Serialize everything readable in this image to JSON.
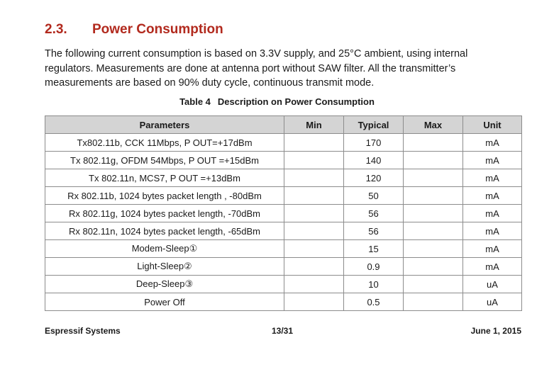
{
  "section": {
    "number": "2.3.",
    "title": "Power Consumption"
  },
  "paragraph": "The following current consumption is based on 3.3V supply, and 25°C ambient, using internal regulators. Measurements are done at antenna port without SAW filter. All the transmitter’s measurements are based on 90% duty cycle, continuous transmit mode.",
  "table": {
    "caption_number": "Table 4",
    "caption_title": "Description on Power Consumption",
    "headers": [
      "Parameters",
      "Min",
      "Typical",
      "Max",
      "Unit"
    ],
    "rows": [
      [
        "Tx802.11b, CCK 11Mbps, P OUT=+17dBm",
        "",
        "170",
        "",
        "mA"
      ],
      [
        "Tx 802.11g, OFDM 54Mbps, P OUT =+15dBm",
        "",
        "140",
        "",
        "mA"
      ],
      [
        "Tx 802.11n, MCS7, P OUT =+13dBm",
        "",
        "120",
        "",
        "mA"
      ],
      [
        "Rx 802.11b, 1024 bytes packet length , -80dBm",
        "",
        "50",
        "",
        "mA"
      ],
      [
        "Rx 802.11g, 1024 bytes packet length, -70dBm",
        "",
        "56",
        "",
        "mA"
      ],
      [
        "Rx 802.11n, 1024 bytes packet length, -65dBm",
        "",
        "56",
        "",
        "mA"
      ],
      [
        "Modem-Sleep①",
        "",
        "15",
        "",
        "mA"
      ],
      [
        "Light-Sleep②",
        "",
        "0.9",
        "",
        "mA"
      ],
      [
        "Deep-Sleep③",
        "",
        "10",
        "",
        "uA"
      ],
      [
        "Power Off",
        "",
        "0.5",
        "",
        "uA"
      ]
    ]
  },
  "footer": {
    "company": "Espressif Systems",
    "page": "13/31",
    "date": "June 1, 2015"
  },
  "colors": {
    "heading": "#b22a1e",
    "header_bg": "#d4d4d4",
    "border": "#8c8c8c"
  }
}
